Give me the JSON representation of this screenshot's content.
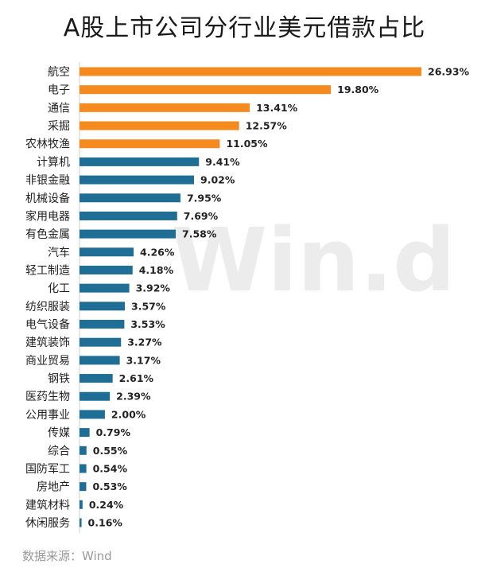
{
  "title": "A股上市公司分行业美元借款占比",
  "watermark": "Win.d",
  "source": "数据来源：Wind",
  "colors": {
    "highlight": "#f58a1f",
    "normal": "#1f6e96"
  },
  "chart_data": {
    "type": "bar",
    "orientation": "horizontal",
    "unit": "%",
    "categories": [
      "航空",
      "电子",
      "通信",
      "采掘",
      "农林牧渔",
      "计算机",
      "非银金融",
      "机械设备",
      "家用电器",
      "有色金属",
      "汽车",
      "轻工制造",
      "化工",
      "纺织服装",
      "电气设备",
      "建筑装饰",
      "商业贸易",
      "钢铁",
      "医药生物",
      "公用事业",
      "传媒",
      "综合",
      "国防军工",
      "房地产",
      "建筑材料",
      "休闲服务"
    ],
    "values": [
      26.93,
      19.8,
      13.41,
      12.57,
      11.05,
      9.41,
      9.02,
      7.95,
      7.69,
      7.58,
      4.26,
      4.18,
      3.92,
      3.57,
      3.53,
      3.27,
      3.17,
      2.61,
      2.39,
      2.0,
      0.79,
      0.55,
      0.54,
      0.53,
      0.24,
      0.16
    ],
    "labels": [
      "26.93%",
      "19.80%",
      "13.41%",
      "12.57%",
      "11.05%",
      "9.41%",
      "9.02%",
      "7.95%",
      "7.69%",
      "7.58%",
      "4.26%",
      "4.18%",
      "3.92%",
      "3.57%",
      "3.53%",
      "3.27%",
      "3.17%",
      "2.61%",
      "2.39%",
      "2.00%",
      "0.79%",
      "0.55%",
      "0.54%",
      "0.53%",
      "0.24%",
      "0.16%"
    ],
    "highlight_top_n": 5,
    "xlim": [
      0,
      26.93
    ],
    "grid": false,
    "legend": "none"
  }
}
